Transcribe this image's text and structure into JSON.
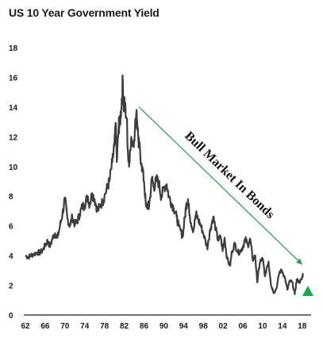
{
  "chart_data": {
    "type": "line",
    "title": "US 10 Year Government Yield",
    "xlabel": "",
    "ylabel": "",
    "xlim": [
      1962,
      2019
    ],
    "ylim": [
      0,
      18
    ],
    "y_ticks": [
      0,
      2,
      4,
      6,
      8,
      10,
      12,
      14,
      16,
      18
    ],
    "x_tick_labels": [
      "62",
      "66",
      "70",
      "74",
      "78",
      "82",
      "86",
      "90",
      "94",
      "98",
      "02",
      "06",
      "10",
      "14",
      "18"
    ],
    "grid": false,
    "legend": "none",
    "series": [
      {
        "color": "#3d3d3d",
        "points": [
          [
            1962,
            4.0
          ],
          [
            1962.6,
            3.9
          ],
          [
            1963,
            4.0
          ],
          [
            1963.7,
            4.1
          ],
          [
            1964.3,
            4.2
          ],
          [
            1965,
            4.2
          ],
          [
            1965.6,
            4.4
          ],
          [
            1966,
            4.7
          ],
          [
            1966.5,
            5.0
          ],
          [
            1967,
            4.6
          ],
          [
            1967.5,
            5.2
          ],
          [
            1968,
            5.5
          ],
          [
            1968.5,
            5.2
          ],
          [
            1969,
            6.0
          ],
          [
            1969.5,
            6.8
          ],
          [
            1970,
            7.8
          ],
          [
            1970.5,
            6.5
          ],
          [
            1971,
            6.0
          ],
          [
            1971.5,
            6.6
          ],
          [
            1972,
            6.1
          ],
          [
            1972.5,
            6.3
          ],
          [
            1973,
            6.8
          ],
          [
            1973.5,
            7.3
          ],
          [
            1974,
            7.4
          ],
          [
            1974.6,
            8.0
          ],
          [
            1975,
            7.4
          ],
          [
            1975.5,
            8.2
          ],
          [
            1976,
            7.8
          ],
          [
            1976.6,
            7.0
          ],
          [
            1977,
            7.3
          ],
          [
            1977.6,
            7.6
          ],
          [
            1978,
            8.0
          ],
          [
            1978.6,
            8.6
          ],
          [
            1979,
            9.0
          ],
          [
            1979.6,
            10.3
          ],
          [
            1980,
            11.4
          ],
          [
            1980.3,
            12.8
          ],
          [
            1980.5,
            10.3
          ],
          [
            1980.9,
            12.9
          ],
          [
            1981,
            12.6
          ],
          [
            1981.4,
            13.9
          ],
          [
            1981.7,
            15.8
          ],
          [
            1981.9,
            14.0
          ],
          [
            1982.1,
            14.2
          ],
          [
            1982.5,
            13.2
          ],
          [
            1982.8,
            10.6
          ],
          [
            1983,
            10.4
          ],
          [
            1983.5,
            11.8
          ],
          [
            1984,
            11.8
          ],
          [
            1984.5,
            13.8
          ],
          [
            1984.9,
            11.6
          ],
          [
            1985,
            11.4
          ],
          [
            1985.5,
            10.2
          ],
          [
            1986,
            9.0
          ],
          [
            1986.4,
            7.3
          ],
          [
            1986.8,
            7.4
          ],
          [
            1987,
            7.2
          ],
          [
            1987.6,
            9.2
          ],
          [
            1988,
            8.6
          ],
          [
            1988.5,
            9.1
          ],
          [
            1989,
            8.9
          ],
          [
            1989.5,
            7.9
          ],
          [
            1990,
            8.6
          ],
          [
            1990.6,
            8.8
          ],
          [
            1991,
            8.0
          ],
          [
            1991.6,
            7.5
          ],
          [
            1992,
            7.2
          ],
          [
            1992.6,
            6.6
          ],
          [
            1993,
            6.0
          ],
          [
            1993.8,
            5.3
          ],
          [
            1994,
            5.8
          ],
          [
            1994.5,
            7.3
          ],
          [
            1994.9,
            7.8
          ],
          [
            1995,
            7.4
          ],
          [
            1995.5,
            6.2
          ],
          [
            1996,
            5.7
          ],
          [
            1996.5,
            6.8
          ],
          [
            1997,
            6.4
          ],
          [
            1997.5,
            6.0
          ],
          [
            1998,
            5.5
          ],
          [
            1998.8,
            4.5
          ],
          [
            1999,
            5.0
          ],
          [
            1999.5,
            5.9
          ],
          [
            2000,
            6.6
          ],
          [
            2000.5,
            5.8
          ],
          [
            2001,
            5.0
          ],
          [
            2001.5,
            5.3
          ],
          [
            2001.9,
            4.3
          ],
          [
            2002.3,
            5.2
          ],
          [
            2002.8,
            3.8
          ],
          [
            2003.4,
            3.3
          ],
          [
            2003.8,
            4.3
          ],
          [
            2004.4,
            4.8
          ],
          [
            2005,
            4.2
          ],
          [
            2005.5,
            4.3
          ],
          [
            2006,
            4.6
          ],
          [
            2006.5,
            5.1
          ],
          [
            2007,
            4.7
          ],
          [
            2007.5,
            5.1
          ],
          [
            2008,
            3.7
          ],
          [
            2008.5,
            4.0
          ],
          [
            2008.9,
            2.2
          ],
          [
            2009.2,
            3.0
          ],
          [
            2009.5,
            3.6
          ],
          [
            2010,
            3.8
          ],
          [
            2010.5,
            2.6
          ],
          [
            2010.9,
            3.3
          ],
          [
            2011.2,
            3.6
          ],
          [
            2011.7,
            2.0
          ],
          [
            2012.3,
            1.5
          ],
          [
            2012.8,
            1.8
          ],
          [
            2013.4,
            2.9
          ],
          [
            2013.9,
            3.0
          ],
          [
            2014.5,
            2.5
          ],
          [
            2015,
            1.7
          ],
          [
            2015.5,
            2.3
          ],
          [
            2016,
            2.2
          ],
          [
            2016.5,
            1.4
          ],
          [
            2016.9,
            2.4
          ],
          [
            2017.4,
            2.2
          ],
          [
            2017.9,
            2.4
          ],
          [
            2018.2,
            2.8
          ]
        ]
      }
    ],
    "annotations": [
      {
        "text": "Bull Market In Bonds",
        "arrow_from": [
          1985,
          14
        ],
        "arrow_to": [
          2018,
          3.4
        ],
        "color": "#2a9a4a"
      }
    ],
    "marker": {
      "shape": "triangle-up",
      "color": "#1aa84a"
    }
  }
}
